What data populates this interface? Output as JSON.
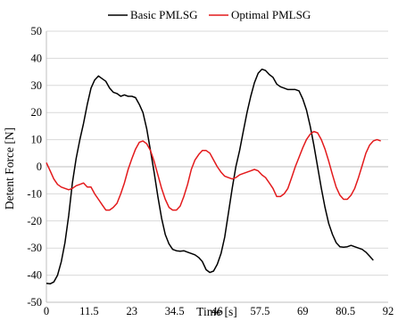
{
  "chart_data": {
    "type": "line",
    "title": "",
    "xlabel": "Time [s]",
    "ylabel": "Detent Force [N]",
    "xlim": [
      0,
      92
    ],
    "ylim": [
      -50,
      50
    ],
    "x_ticks": [
      0,
      11.5,
      23,
      34.5,
      46,
      57.5,
      69,
      80.5,
      92
    ],
    "x_tick_labels": [
      "0",
      "11.5",
      "23",
      "34.5",
      "46",
      "57.5",
      "69",
      "80.5",
      "92"
    ],
    "y_ticks": [
      -50,
      -40,
      -30,
      -20,
      -10,
      0,
      10,
      20,
      30,
      40,
      50
    ],
    "y_tick_labels": [
      "-50",
      "-40",
      "-30",
      "-20",
      "-10",
      "0",
      "10",
      "20",
      "30",
      "40",
      "50"
    ],
    "grid": "horizontal",
    "legend_position": "top",
    "series": [
      {
        "name": "Basic PMLSG",
        "color": "#000000",
        "points": [
          [
            0,
            -43
          ],
          [
            1,
            -43.2
          ],
          [
            2,
            -42.5
          ],
          [
            3,
            -40
          ],
          [
            4,
            -35
          ],
          [
            5,
            -28
          ],
          [
            6,
            -18
          ],
          [
            7,
            -6
          ],
          [
            8,
            3
          ],
          [
            9,
            10
          ],
          [
            10,
            16
          ],
          [
            11,
            23
          ],
          [
            12,
            29
          ],
          [
            13,
            32
          ],
          [
            14,
            33.5
          ],
          [
            15,
            32.5
          ],
          [
            16,
            31.5
          ],
          [
            17,
            29
          ],
          [
            18,
            27.5
          ],
          [
            19,
            27
          ],
          [
            20,
            26
          ],
          [
            21,
            26.5
          ],
          [
            22,
            26
          ],
          [
            23,
            26
          ],
          [
            24,
            25.5
          ],
          [
            25,
            23
          ],
          [
            26,
            20
          ],
          [
            27,
            14
          ],
          [
            28,
            6
          ],
          [
            29,
            -2
          ],
          [
            30,
            -11
          ],
          [
            31,
            -19
          ],
          [
            32,
            -25
          ],
          [
            33,
            -28.5
          ],
          [
            34,
            -30.5
          ],
          [
            35,
            -31
          ],
          [
            36,
            -31.2
          ],
          [
            37,
            -31
          ],
          [
            38,
            -31.5
          ],
          [
            39,
            -32
          ],
          [
            40,
            -32.5
          ],
          [
            41,
            -33.5
          ],
          [
            42,
            -35
          ],
          [
            43,
            -38
          ],
          [
            44,
            -39
          ],
          [
            45,
            -38.5
          ],
          [
            46,
            -36
          ],
          [
            47,
            -32
          ],
          [
            48,
            -26
          ],
          [
            49,
            -17
          ],
          [
            50,
            -8
          ],
          [
            51,
            0
          ],
          [
            52,
            6
          ],
          [
            53,
            13
          ],
          [
            54,
            20
          ],
          [
            55,
            26
          ],
          [
            56,
            31
          ],
          [
            57,
            34.5
          ],
          [
            58,
            36
          ],
          [
            59,
            35.5
          ],
          [
            60,
            34
          ],
          [
            61,
            33
          ],
          [
            62,
            30.5
          ],
          [
            63,
            29.5
          ],
          [
            64,
            29
          ],
          [
            65,
            28.5
          ],
          [
            66,
            28.5
          ],
          [
            67,
            28.5
          ],
          [
            68,
            28
          ],
          [
            69,
            25
          ],
          [
            70,
            21
          ],
          [
            71,
            15
          ],
          [
            72,
            8
          ],
          [
            73,
            0
          ],
          [
            74,
            -8
          ],
          [
            75,
            -15
          ],
          [
            76,
            -21
          ],
          [
            77,
            -25
          ],
          [
            78,
            -28
          ],
          [
            79,
            -29.5
          ],
          [
            80,
            -29.7
          ],
          [
            81,
            -29.5
          ],
          [
            82,
            -29
          ],
          [
            83,
            -29.5
          ],
          [
            84,
            -30
          ],
          [
            85,
            -30.5
          ],
          [
            86,
            -31.5
          ],
          [
            87,
            -33
          ],
          [
            88,
            -34.5
          ]
        ]
      },
      {
        "name": "Optimal PMLSG",
        "color": "#e31a1c",
        "points": [
          [
            0,
            1.5
          ],
          [
            1,
            -1.5
          ],
          [
            2,
            -4.5
          ],
          [
            3,
            -6.5
          ],
          [
            4,
            -7.5
          ],
          [
            5,
            -8
          ],
          [
            6,
            -8.5
          ],
          [
            7,
            -8
          ],
          [
            8,
            -7
          ],
          [
            9,
            -6.5
          ],
          [
            10,
            -6
          ],
          [
            11,
            -7.5
          ],
          [
            12,
            -7.5
          ],
          [
            13,
            -10
          ],
          [
            14,
            -12
          ],
          [
            15,
            -14
          ],
          [
            16,
            -16
          ],
          [
            17,
            -16
          ],
          [
            18,
            -15
          ],
          [
            19,
            -13.5
          ],
          [
            20,
            -10
          ],
          [
            21,
            -6
          ],
          [
            22,
            -1
          ],
          [
            23,
            3
          ],
          [
            24,
            6.5
          ],
          [
            25,
            9
          ],
          [
            26,
            9.5
          ],
          [
            27,
            8.5
          ],
          [
            28,
            6
          ],
          [
            29,
            2
          ],
          [
            30,
            -3
          ],
          [
            31,
            -8
          ],
          [
            32,
            -12
          ],
          [
            33,
            -15
          ],
          [
            34,
            -16
          ],
          [
            35,
            -16
          ],
          [
            36,
            -14.5
          ],
          [
            37,
            -11
          ],
          [
            38,
            -6.5
          ],
          [
            39,
            -1
          ],
          [
            40,
            2.5
          ],
          [
            41,
            4.5
          ],
          [
            42,
            6
          ],
          [
            43,
            6
          ],
          [
            44,
            5
          ],
          [
            45,
            2.5
          ],
          [
            46,
            0
          ],
          [
            47,
            -2
          ],
          [
            48,
            -3.5
          ],
          [
            49,
            -4
          ],
          [
            50,
            -4.5
          ],
          [
            51,
            -4
          ],
          [
            52,
            -3
          ],
          [
            53,
            -2.5
          ],
          [
            54,
            -2
          ],
          [
            55,
            -1.5
          ],
          [
            56,
            -1
          ],
          [
            57,
            -1.5
          ],
          [
            58,
            -3
          ],
          [
            59,
            -4
          ],
          [
            60,
            -6
          ],
          [
            61,
            -8
          ],
          [
            62,
            -11
          ],
          [
            63,
            -11
          ],
          [
            64,
            -10
          ],
          [
            65,
            -8
          ],
          [
            66,
            -4
          ],
          [
            67,
            0
          ],
          [
            68,
            3.5
          ],
          [
            69,
            7
          ],
          [
            70,
            10
          ],
          [
            71,
            12
          ],
          [
            72,
            13
          ],
          [
            73,
            12.5
          ],
          [
            74,
            10
          ],
          [
            75,
            6.5
          ],
          [
            76,
            2
          ],
          [
            77,
            -3
          ],
          [
            78,
            -7.5
          ],
          [
            79,
            -10.5
          ],
          [
            80,
            -12
          ],
          [
            81,
            -12
          ],
          [
            82,
            -10.5
          ],
          [
            83,
            -8
          ],
          [
            84,
            -4
          ],
          [
            85,
            0.5
          ],
          [
            86,
            5
          ],
          [
            87,
            8
          ],
          [
            88,
            9.5
          ],
          [
            89,
            10
          ],
          [
            90,
            9.5
          ]
        ]
      }
    ]
  }
}
